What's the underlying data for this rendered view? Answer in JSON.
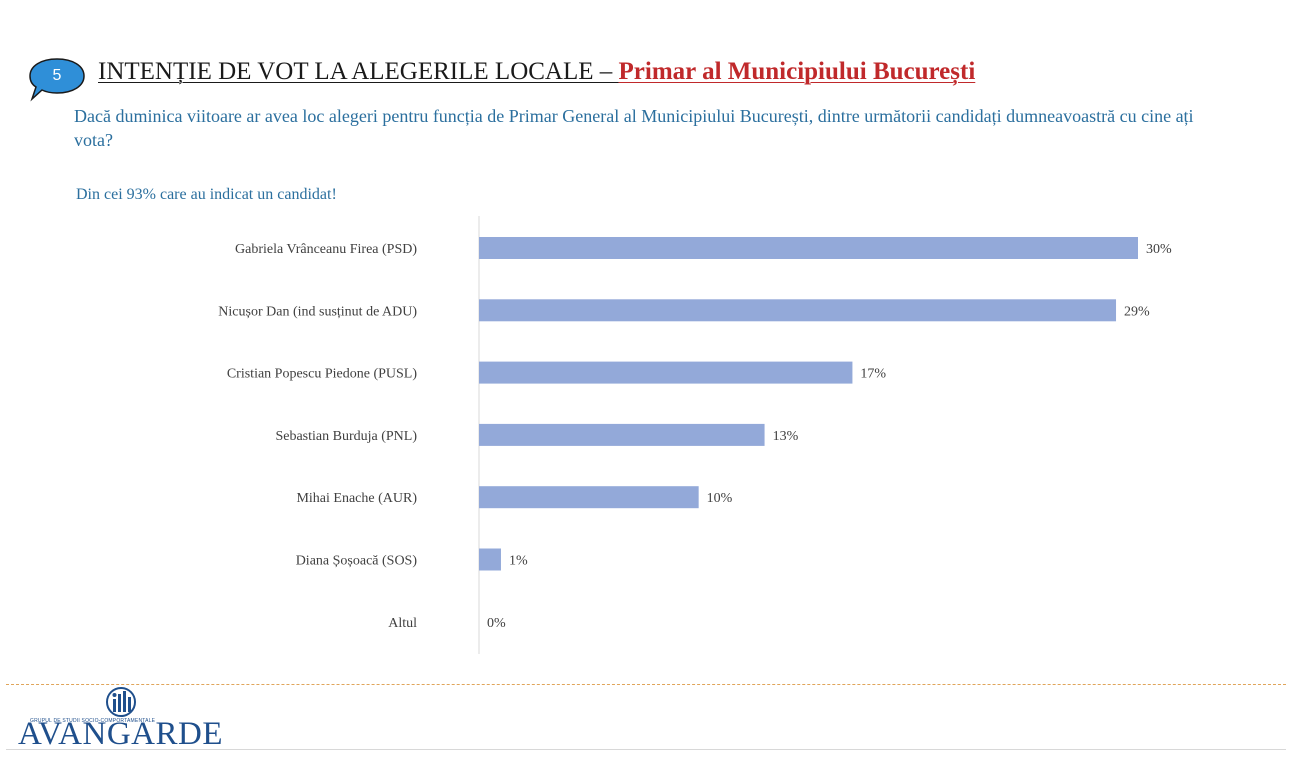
{
  "header": {
    "slide_number": "5",
    "title_main": "INTENȚIE DE VOT LA ALEGERILE LOCALE – ",
    "title_highlight": "Primar al Municipiului București",
    "question": "Dacă duminica viitoare ar avea loc alegeri pentru funcția de Primar General al Municipiului București, dintre următorii candidați dumneavoastră cu cine ați vota?",
    "subnote": "Din cei 93% care au indicat un candidat!"
  },
  "chart_data": {
    "type": "bar",
    "orientation": "horizontal",
    "categories": [
      "Gabriela Vrânceanu Firea (PSD)",
      "Nicușor Dan (ind susținut de ADU)",
      "Cristian Popescu Piedone (PUSL)",
      "Sebastian Burduja (PNL)",
      "Mihai Enache (AUR)",
      "Diana Șoșoacă (SOS)",
      "Altul"
    ],
    "values": [
      30,
      29,
      17,
      13,
      10,
      1,
      0
    ],
    "value_labels": [
      "30%",
      "29%",
      "17%",
      "13%",
      "10%",
      "1%",
      "0%"
    ],
    "bar_color": "#93a9d9",
    "xlim": [
      0,
      30
    ],
    "grid": false,
    "legend": "none"
  },
  "footer": {
    "logo_tagline": "GRUPUL DE STUDII SOCIO-COMPORTAMENTALE",
    "logo_word": "AVANGARDE",
    "brand_color": "#1f4f8c",
    "separator_color": "#e0a55a"
  }
}
